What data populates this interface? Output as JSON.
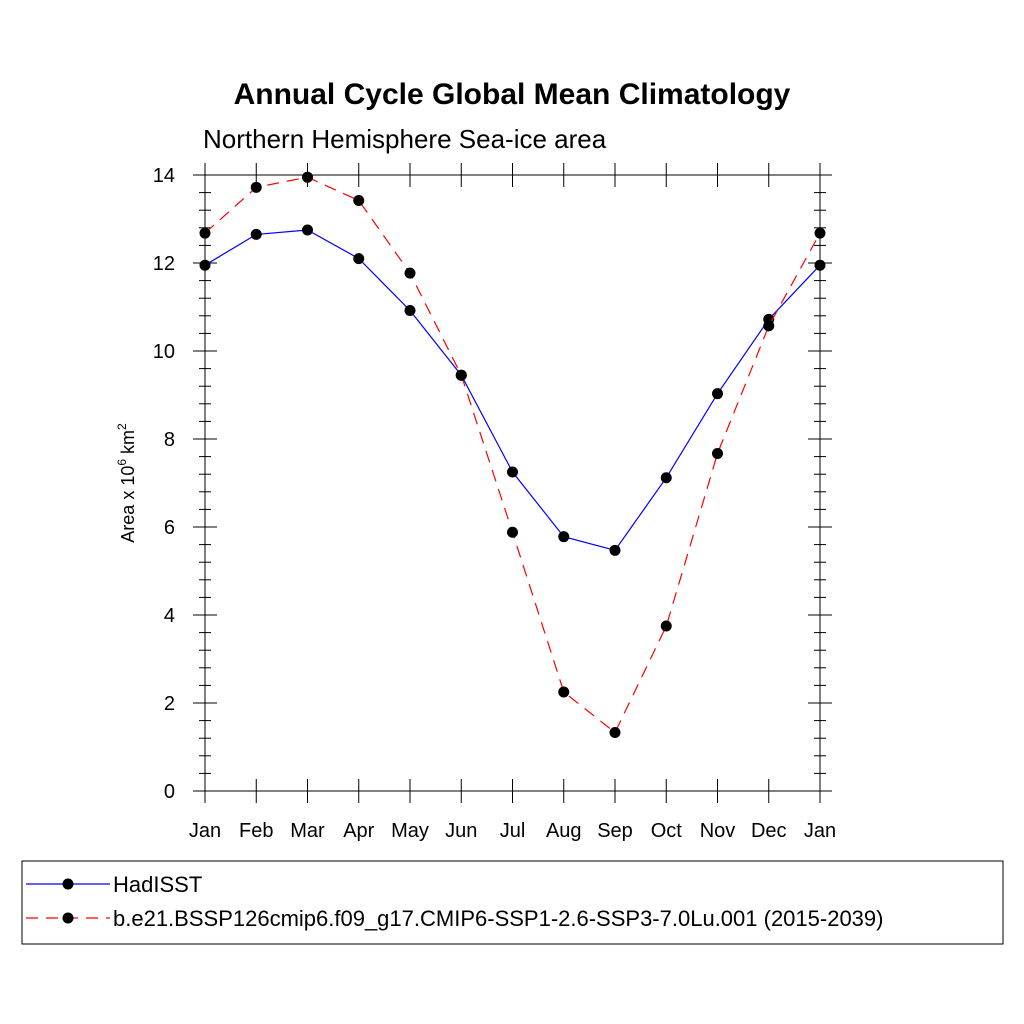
{
  "chart_data": {
    "type": "line",
    "title": "Annual Cycle Global Mean Climatology",
    "subtitle": "Northern Hemisphere Sea-ice area",
    "ylabel": "Area x 10",
    "ylabel_exp1": "6",
    "ylabel_unit": " km",
    "ylabel_exp2": "2",
    "ylim": [
      0,
      14
    ],
    "yticks": [
      "0",
      "2",
      "4",
      "6",
      "8",
      "10",
      "12",
      "14"
    ],
    "categories": [
      "Jan",
      "Feb",
      "Mar",
      "Apr",
      "May",
      "Jun",
      "Jul",
      "Aug",
      "Sep",
      "Oct",
      "Nov",
      "Dec",
      "Jan"
    ],
    "grid": false,
    "legend_position": "bottom",
    "series": [
      {
        "name": "HadISST",
        "color": "#0000ff",
        "dash": "solid",
        "marker": "filled-circle",
        "values": [
          11.95,
          12.65,
          12.75,
          12.1,
          10.92,
          9.45,
          7.25,
          5.78,
          5.47,
          7.12,
          9.03,
          10.72,
          11.95
        ]
      },
      {
        "name": "b.e21.BSSP126cmip6.f09_g17.CMIP6-SSP1-2.6-SSP3-7.0Lu.001 (2015-2039)",
        "color": "#ff0000",
        "dash": "dashed",
        "marker": "filled-circle",
        "values": [
          12.68,
          13.72,
          13.95,
          13.42,
          11.77,
          9.45,
          5.88,
          2.25,
          1.33,
          3.75,
          7.67,
          10.57,
          12.68
        ]
      }
    ]
  }
}
